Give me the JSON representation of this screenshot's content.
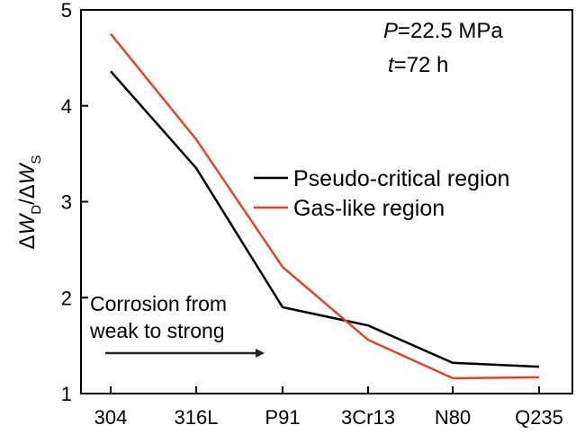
{
  "chart_data": {
    "type": "line",
    "categories": [
      "304",
      "316L",
      "P91",
      "3Cr13",
      "N80",
      "Q235"
    ],
    "series": [
      {
        "name": "Pseudo-critical region",
        "color": "#000000",
        "values": [
          4.36,
          3.35,
          1.9,
          1.71,
          1.32,
          1.28
        ]
      },
      {
        "name": "Gas-like region",
        "color": "#e0452c",
        "values": [
          4.75,
          3.65,
          2.32,
          1.56,
          1.16,
          1.17
        ]
      }
    ],
    "ylabel": {
      "delta1": "Δ",
      "w1": "W",
      "sub1": "D",
      "slash": "/",
      "delta2": "Δ",
      "w2": "W",
      "sub2": "S"
    },
    "ylim": [
      1,
      5
    ],
    "yticks": [
      1,
      2,
      3,
      4,
      5
    ],
    "conditions": [
      {
        "symbol": "P",
        "value": "=22.5 MPa"
      },
      {
        "symbol": "t",
        "value": "=72 h"
      }
    ],
    "annotation": {
      "lines": [
        "Corrosion from",
        "weak to strong"
      ],
      "arrow_color": "#222222"
    },
    "legend_position": "center-right",
    "grid": false
  }
}
